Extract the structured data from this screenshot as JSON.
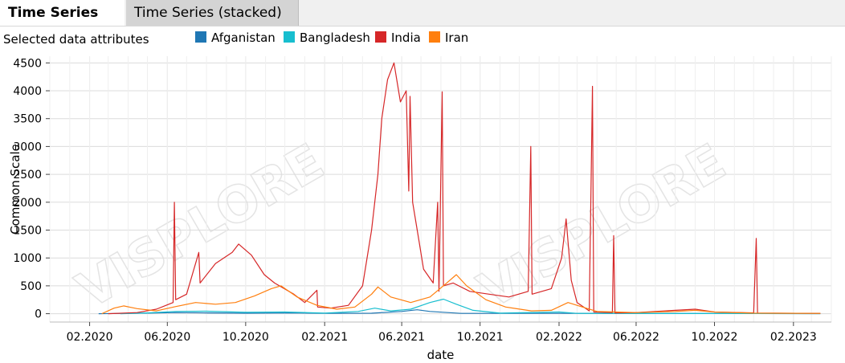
{
  "tabs": [
    {
      "label": "Time Series",
      "active": true
    },
    {
      "label": "Time Series (stacked)",
      "active": false
    }
  ],
  "header": {
    "subtitle": "Selected data attributes"
  },
  "watermark": "VISPLORE",
  "colors": {
    "Afganistan": "#1f77b4",
    "Bangladesh": "#17becf",
    "India": "#d62728",
    "Iran": "#ff7f0e"
  },
  "chart_data": {
    "type": "line",
    "xlabel": "date",
    "ylabel": "Common Scale",
    "xlim": [
      "2019-12-01",
      "2023-04-01"
    ],
    "ylim": [
      -150,
      4620
    ],
    "x_ticks": [
      "02.2020",
      "06.2020",
      "10.2020",
      "02.2021",
      "06.2021",
      "10.2021",
      "02.2022",
      "06.2022",
      "10.2022",
      "02.2023"
    ],
    "y_ticks": [
      0,
      500,
      1000,
      1500,
      2000,
      2500,
      3000,
      3500,
      4000,
      4500
    ],
    "grid": true,
    "legend_position": "top",
    "series": [
      {
        "name": "Afganistan",
        "color": "#1f77b4",
        "points": [
          [
            "2020-02-15",
            0
          ],
          [
            "2020-05-01",
            10
          ],
          [
            "2020-06-15",
            20
          ],
          [
            "2020-08-01",
            15
          ],
          [
            "2020-10-01",
            8
          ],
          [
            "2020-12-15",
            15
          ],
          [
            "2021-02-01",
            5
          ],
          [
            "2021-04-15",
            8
          ],
          [
            "2021-06-01",
            40
          ],
          [
            "2021-06-25",
            70
          ],
          [
            "2021-07-15",
            40
          ],
          [
            "2021-09-01",
            5
          ],
          [
            "2022-01-01",
            5
          ],
          [
            "2022-06-01",
            5
          ],
          [
            "2023-03-15",
            2
          ]
        ]
      },
      {
        "name": "Bangladesh",
        "color": "#17becf",
        "points": [
          [
            "2020-03-20",
            0
          ],
          [
            "2020-05-01",
            15
          ],
          [
            "2020-06-15",
            40
          ],
          [
            "2020-08-01",
            45
          ],
          [
            "2020-10-01",
            25
          ],
          [
            "2020-12-01",
            30
          ],
          [
            "2021-02-01",
            10
          ],
          [
            "2021-03-25",
            40
          ],
          [
            "2021-04-20",
            100
          ],
          [
            "2021-05-15",
            50
          ],
          [
            "2021-06-15",
            80
          ],
          [
            "2021-07-15",
            200
          ],
          [
            "2021-08-05",
            260
          ],
          [
            "2021-08-25",
            170
          ],
          [
            "2021-09-20",
            60
          ],
          [
            "2021-11-01",
            10
          ],
          [
            "2022-02-01",
            30
          ],
          [
            "2022-03-01",
            5
          ],
          [
            "2022-12-01",
            3
          ],
          [
            "2023-03-15",
            2
          ]
        ]
      },
      {
        "name": "India",
        "color": "#d62728",
        "points": [
          [
            "2020-03-01",
            0
          ],
          [
            "2020-04-15",
            20
          ],
          [
            "2020-05-15",
            80
          ],
          [
            "2020-06-10",
            200
          ],
          [
            "2020-06-12",
            2000
          ],
          [
            "2020-06-14",
            250
          ],
          [
            "2020-07-01",
            350
          ],
          [
            "2020-07-20",
            1100
          ],
          [
            "2020-07-22",
            550
          ],
          [
            "2020-08-15",
            900
          ],
          [
            "2020-09-10",
            1100
          ],
          [
            "2020-09-20",
            1250
          ],
          [
            "2020-10-10",
            1050
          ],
          [
            "2020-10-30",
            700
          ],
          [
            "2020-11-15",
            550
          ],
          [
            "2020-12-15",
            350
          ],
          [
            "2021-01-01",
            200
          ],
          [
            "2021-01-20",
            420
          ],
          [
            "2021-01-21",
            120
          ],
          [
            "2021-02-10",
            100
          ],
          [
            "2021-03-10",
            150
          ],
          [
            "2021-04-01",
            500
          ],
          [
            "2021-04-15",
            1500
          ],
          [
            "2021-04-25",
            2500
          ],
          [
            "2021-05-01",
            3500
          ],
          [
            "2021-05-10",
            4200
          ],
          [
            "2021-05-20",
            4500
          ],
          [
            "2021-05-30",
            3800
          ],
          [
            "2021-06-08",
            4000
          ],
          [
            "2021-06-12",
            2200
          ],
          [
            "2021-06-14",
            3900
          ],
          [
            "2021-06-18",
            2000
          ],
          [
            "2021-06-28",
            1300
          ],
          [
            "2021-07-05",
            800
          ],
          [
            "2021-07-20",
            550
          ],
          [
            "2021-07-27",
            2000
          ],
          [
            "2021-07-29",
            400
          ],
          [
            "2021-08-03",
            3980
          ],
          [
            "2021-08-05",
            500
          ],
          [
            "2021-08-20",
            550
          ],
          [
            "2021-09-15",
            400
          ],
          [
            "2021-10-15",
            350
          ],
          [
            "2021-11-15",
            300
          ],
          [
            "2021-12-15",
            400
          ],
          [
            "2021-12-19",
            3000
          ],
          [
            "2021-12-21",
            350
          ],
          [
            "2022-01-20",
            450
          ],
          [
            "2022-02-05",
            1000
          ],
          [
            "2022-02-12",
            1700
          ],
          [
            "2022-02-20",
            600
          ],
          [
            "2022-03-01",
            200
          ],
          [
            "2022-03-20",
            50
          ],
          [
            "2022-03-25",
            4080
          ],
          [
            "2022-03-27",
            30
          ],
          [
            "2022-04-25",
            20
          ],
          [
            "2022-04-27",
            1400
          ],
          [
            "2022-04-29",
            15
          ],
          [
            "2022-06-01",
            20
          ],
          [
            "2022-07-01",
            40
          ],
          [
            "2022-08-01",
            60
          ],
          [
            "2022-09-01",
            80
          ],
          [
            "2022-10-01",
            30
          ],
          [
            "2022-12-01",
            15
          ],
          [
            "2022-12-05",
            1350
          ],
          [
            "2022-12-07",
            10
          ],
          [
            "2023-03-15",
            5
          ]
        ]
      },
      {
        "name": "Iran",
        "color": "#ff7f0e",
        "points": [
          [
            "2020-02-20",
            0
          ],
          [
            "2020-03-10",
            100
          ],
          [
            "2020-03-25",
            140
          ],
          [
            "2020-04-15",
            90
          ],
          [
            "2020-05-15",
            50
          ],
          [
            "2020-06-15",
            130
          ],
          [
            "2020-07-15",
            200
          ],
          [
            "2020-08-15",
            170
          ],
          [
            "2020-09-15",
            200
          ],
          [
            "2020-10-15",
            320
          ],
          [
            "2020-11-10",
            450
          ],
          [
            "2020-11-25",
            500
          ],
          [
            "2020-12-20",
            300
          ],
          [
            "2021-01-20",
            150
          ],
          [
            "2021-02-20",
            80
          ],
          [
            "2021-03-20",
            120
          ],
          [
            "2021-04-15",
            350
          ],
          [
            "2021-04-25",
            480
          ],
          [
            "2021-05-15",
            300
          ],
          [
            "2021-06-15",
            200
          ],
          [
            "2021-07-15",
            300
          ],
          [
            "2021-08-10",
            550
          ],
          [
            "2021-08-25",
            700
          ],
          [
            "2021-09-10",
            500
          ],
          [
            "2021-10-10",
            250
          ],
          [
            "2021-11-10",
            120
          ],
          [
            "2021-12-20",
            50
          ],
          [
            "2022-01-20",
            60
          ],
          [
            "2022-02-15",
            200
          ],
          [
            "2022-03-01",
            150
          ],
          [
            "2022-04-01",
            40
          ],
          [
            "2022-06-01",
            20
          ],
          [
            "2022-08-01",
            40
          ],
          [
            "2022-09-01",
            60
          ],
          [
            "2022-10-01",
            30
          ],
          [
            "2022-12-01",
            10
          ],
          [
            "2023-03-15",
            5
          ]
        ]
      }
    ]
  }
}
